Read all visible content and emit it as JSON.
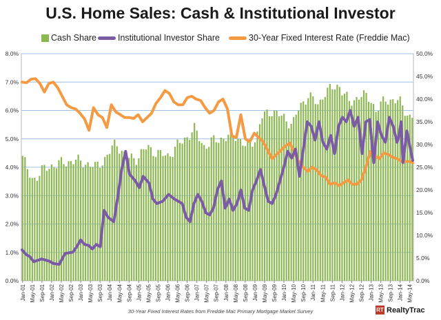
{
  "title": "U.S. Home Sales: Cash & Institutional Investor",
  "caption": "30-Year Fixed Interest Rates from Freddie Mac Primary Mortgage Market Survey",
  "brand": "RealtyTrac",
  "colors": {
    "cash": "#8cb851",
    "investor": "#7b5aa6",
    "rate": "#f39a42",
    "grid": "#9cc0e6"
  },
  "chart_data": {
    "type": "bar",
    "title": "U.S. Home Sales: Cash & Institutional Investor",
    "x_start": "Jan-01",
    "x_tick_labels": [
      "Jan-01",
      "May-01",
      "Sep-01",
      "Jan-02",
      "May-02",
      "Sep-02",
      "Jan-03",
      "May-03",
      "Sep-03",
      "Jan-04",
      "May-04",
      "Sep-04",
      "Jan-05",
      "May-05",
      "Sep-05",
      "Jan-06",
      "May-06",
      "Sep-06",
      "Jan-07",
      "May-07",
      "Sep-07",
      "Jan-08",
      "May-08",
      "Sep-08",
      "Jan-09",
      "May-09",
      "Sep-09",
      "Jan-10",
      "May-10",
      "Sep-10",
      "Jan-11",
      "May-11",
      "Sep-11",
      "Jan-12",
      "May-12",
      "Sep-12",
      "Jan-13",
      "May-13",
      "Sep-13",
      "Jan-14",
      "May-14"
    ],
    "left_axis": {
      "ticks": [
        "0.0%",
        "1.0%",
        "2.0%",
        "3.0%",
        "4.0%",
        "5.0%",
        "6.0%",
        "7.0%",
        "8.0%"
      ],
      "range": [
        0,
        8
      ]
    },
    "right_axis": {
      "ticks": [
        "0.0%",
        "5.0%",
        "10.0%",
        "15.0%",
        "20.0%",
        "25.0%",
        "30.0%",
        "35.0%",
        "40.0%",
        "45.0%",
        "50.0%"
      ],
      "range": [
        0,
        50
      ]
    },
    "legend_position": "top",
    "series": [
      {
        "name": "Cash Share",
        "type": "bar",
        "axis": "right",
        "unit": "%",
        "anchors": [
          [
            0,
            27.5
          ],
          [
            2,
            24
          ],
          [
            4,
            22.2
          ],
          [
            8,
            24.5
          ],
          [
            12,
            25.5
          ],
          [
            16,
            26
          ],
          [
            20,
            26.5
          ],
          [
            24,
            26
          ],
          [
            28,
            25
          ],
          [
            32,
            27
          ],
          [
            36,
            30.5
          ],
          [
            40,
            27
          ],
          [
            44,
            27
          ],
          [
            48,
            29.5
          ],
          [
            52,
            28
          ],
          [
            56,
            27.5
          ],
          [
            60,
            30
          ],
          [
            64,
            32
          ],
          [
            66,
            33.5
          ],
          [
            70,
            29.5
          ],
          [
            74,
            31
          ],
          [
            78,
            31.5
          ],
          [
            82,
            32
          ],
          [
            86,
            29.5
          ],
          [
            90,
            31.5
          ],
          [
            92,
            36
          ],
          [
            96,
            37.5
          ],
          [
            100,
            36
          ],
          [
            104,
            34.5
          ],
          [
            106,
            37.5
          ],
          [
            110,
            41
          ],
          [
            114,
            38.5
          ],
          [
            116,
            41.5
          ],
          [
            122,
            43
          ],
          [
            126,
            39
          ],
          [
            130,
            41
          ],
          [
            134,
            40
          ],
          [
            136,
            37.5
          ],
          [
            140,
            40
          ],
          [
            145,
            39.5
          ],
          [
            148,
            37
          ],
          [
            149,
            36
          ]
        ]
      },
      {
        "name": "Institutional Investor Share",
        "type": "line",
        "axis": "right",
        "unit": "%",
        "anchors": [
          [
            0,
            6.8
          ],
          [
            2,
            5.8
          ],
          [
            4,
            5.3
          ],
          [
            6,
            4.2
          ],
          [
            10,
            4.8
          ],
          [
            14,
            4.3
          ],
          [
            16,
            3.8
          ],
          [
            19,
            3.6
          ],
          [
            22,
            6
          ],
          [
            26,
            6.3
          ],
          [
            28,
            7.5
          ],
          [
            30,
            9
          ],
          [
            32,
            8
          ],
          [
            34,
            7.8
          ],
          [
            36,
            7
          ],
          [
            38,
            8
          ],
          [
            40,
            7.5
          ],
          [
            42,
            15.5
          ],
          [
            44,
            14
          ],
          [
            47,
            13
          ],
          [
            49,
            18.5
          ],
          [
            51,
            24.5
          ],
          [
            53,
            28.5
          ],
          [
            55,
            23.5
          ],
          [
            58,
            22
          ],
          [
            60,
            20.5
          ],
          [
            62,
            23
          ],
          [
            65,
            21.5
          ],
          [
            67,
            18
          ],
          [
            69,
            17
          ],
          [
            72,
            17.5
          ],
          [
            75,
            19
          ],
          [
            78,
            18
          ],
          [
            80,
            17.5
          ],
          [
            82,
            17
          ],
          [
            84,
            14
          ],
          [
            86,
            13
          ],
          [
            88,
            17
          ],
          [
            90,
            19
          ],
          [
            92,
            17.5
          ],
          [
            94,
            15
          ],
          [
            96,
            14.5
          ],
          [
            98,
            16
          ],
          [
            100,
            20
          ],
          [
            102,
            22
          ],
          [
            104,
            16
          ],
          [
            106,
            18
          ],
          [
            108,
            15.5
          ],
          [
            110,
            17
          ],
          [
            112,
            20
          ],
          [
            114,
            16
          ],
          [
            116,
            15.5
          ],
          [
            118,
            20
          ],
          [
            120,
            22
          ],
          [
            122,
            24.5
          ],
          [
            124,
            21
          ],
          [
            126,
            17.5
          ],
          [
            128,
            17
          ],
          [
            130,
            19
          ],
          [
            132,
            22
          ],
          [
            134,
            25
          ],
          [
            136,
            28.5
          ],
          [
            138,
            27
          ],
          [
            140,
            29
          ],
          [
            142,
            23
          ],
          [
            144,
            29
          ],
          [
            146,
            35
          ],
          [
            148,
            34
          ],
          [
            150,
            31
          ],
          [
            152,
            35
          ],
          [
            154,
            30.5
          ],
          [
            156,
            29
          ],
          [
            158,
            32
          ],
          [
            160,
            28
          ],
          [
            162,
            34
          ],
          [
            164,
            36
          ],
          [
            166,
            35
          ],
          [
            168,
            37.5
          ],
          [
            170,
            34
          ],
          [
            172,
            36
          ],
          [
            174,
            28
          ],
          [
            176,
            35
          ],
          [
            178,
            35.5
          ],
          [
            180,
            26
          ],
          [
            182,
            35
          ],
          [
            184,
            32
          ],
          [
            186,
            30.5
          ],
          [
            188,
            36
          ],
          [
            190,
            34
          ],
          [
            192,
            30.5
          ],
          [
            193,
            32
          ],
          [
            194,
            35
          ],
          [
            195,
            26
          ],
          [
            197,
            33
          ],
          [
            199,
            28.5
          ],
          [
            200,
            26.5
          ]
        ]
      },
      {
        "name": "30-Year Fixed Interest Rate (Freddie Mac)",
        "type": "line",
        "axis": "left",
        "unit": "%",
        "anchors": [
          [
            0,
            7.0
          ],
          [
            2,
            6.98
          ],
          [
            4,
            7.1
          ],
          [
            6,
            7.12
          ],
          [
            8,
            6.95
          ],
          [
            10,
            6.65
          ],
          [
            12,
            6.95
          ],
          [
            14,
            7.0
          ],
          [
            16,
            6.8
          ],
          [
            18,
            6.5
          ],
          [
            20,
            6.2
          ],
          [
            22,
            6.1
          ],
          [
            24,
            6.05
          ],
          [
            26,
            5.9
          ],
          [
            28,
            5.7
          ],
          [
            30,
            5.3
          ],
          [
            32,
            6.1
          ],
          [
            34,
            5.85
          ],
          [
            36,
            5.75
          ],
          [
            38,
            5.4
          ],
          [
            40,
            6.2
          ],
          [
            42,
            5.95
          ],
          [
            44,
            5.85
          ],
          [
            46,
            5.75
          ],
          [
            48,
            5.75
          ],
          [
            50,
            5.72
          ],
          [
            52,
            5.85
          ],
          [
            54,
            5.6
          ],
          [
            56,
            5.75
          ],
          [
            58,
            5.9
          ],
          [
            60,
            6.25
          ],
          [
            62,
            6.45
          ],
          [
            64,
            6.7
          ],
          [
            66,
            6.6
          ],
          [
            68,
            6.3
          ],
          [
            70,
            6.2
          ],
          [
            72,
            6.2
          ],
          [
            74,
            6.45
          ],
          [
            76,
            6.5
          ],
          [
            78,
            6.4
          ],
          [
            80,
            6.35
          ],
          [
            82,
            6.1
          ],
          [
            84,
            5.9
          ],
          [
            86,
            6.0
          ],
          [
            88,
            6.3
          ],
          [
            90,
            6.4
          ],
          [
            92,
            6.05
          ],
          [
            94,
            5.1
          ],
          [
            96,
            5.05
          ],
          [
            98,
            5.85
          ],
          [
            100,
            5.0
          ],
          [
            102,
            4.9
          ],
          [
            104,
            5.2
          ],
          [
            106,
            5.05
          ],
          [
            108,
            4.9
          ],
          [
            110,
            4.6
          ],
          [
            112,
            4.3
          ],
          [
            114,
            4.45
          ],
          [
            116,
            4.6
          ],
          [
            118,
            4.75
          ],
          [
            120,
            4.85
          ],
          [
            122,
            4.5
          ],
          [
            124,
            4.2
          ],
          [
            126,
            4.0
          ],
          [
            128,
            3.85
          ],
          [
            130,
            4.0
          ],
          [
            132,
            3.9
          ],
          [
            134,
            3.7
          ],
          [
            136,
            3.65
          ],
          [
            138,
            3.4
          ],
          [
            140,
            3.45
          ],
          [
            142,
            3.35
          ],
          [
            144,
            3.45
          ],
          [
            146,
            3.55
          ],
          [
            148,
            3.4
          ],
          [
            150,
            3.4
          ],
          [
            152,
            3.55
          ],
          [
            154,
            4.0
          ],
          [
            156,
            4.55
          ],
          [
            158,
            4.4
          ],
          [
            160,
            4.3
          ],
          [
            162,
            4.5
          ],
          [
            164,
            4.45
          ],
          [
            166,
            4.35
          ],
          [
            168,
            4.3
          ],
          [
            170,
            4.2
          ],
          [
            172,
            4.2
          ],
          [
            174,
            4.2
          ],
          [
            175,
            4.15
          ]
        ]
      }
    ]
  }
}
